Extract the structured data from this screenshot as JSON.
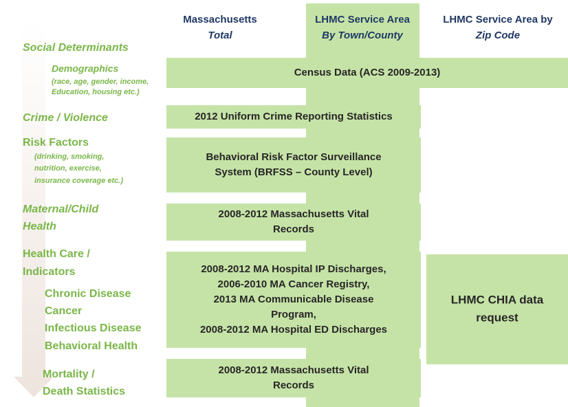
{
  "columns": [
    {
      "title": "Massachusetts",
      "subtitle": "Total"
    },
    {
      "title": "LHMC Service Area",
      "subtitle": "By Town/County"
    },
    {
      "title": "LHMC Service Area by",
      "subtitle": "Zip Code"
    }
  ],
  "rows": [
    {
      "label": [
        "Social Determinants"
      ]
    },
    {
      "label": [
        "Demographics"
      ],
      "note": [
        "(race, age, gender, income,",
        "Education, housing etc.)"
      ]
    },
    {
      "label": [
        "Crime / Violence"
      ]
    },
    {
      "label": [
        "Risk Factors"
      ],
      "note": [
        "(drinking, smoking,",
        "nutrition, exercise,",
        "insurance coverage etc.)"
      ]
    },
    {
      "label": [
        "Maternal/Child",
        "Health"
      ]
    },
    {
      "label": [
        "Health Care /",
        "Indicators"
      ],
      "items": [
        "Chronic Disease",
        "Cancer",
        "Infectious Disease",
        "Behavioral Health"
      ]
    },
    {
      "label": [
        "Mortality /",
        "Death Statistics"
      ]
    }
  ],
  "sources": [
    {
      "lines": [
        "Census Data  (ACS 2009-2013)"
      ]
    },
    {
      "lines": [
        "2012 Uniform Crime Reporting Statistics"
      ]
    },
    {
      "lines": [
        "Behavioral Risk Factor Surveillance",
        "System (BRFSS – County Level)"
      ]
    },
    {
      "lines": [
        "2008-2012 Massachusetts Vital",
        "Records"
      ]
    },
    {
      "lines": [
        "2008-2012 MA Hospital IP Discharges,",
        "2006-2010 MA Cancer Registry,",
        "2013 MA Communicable Disease",
        "Program,",
        "2008-2012 MA Hospital ED Discharges"
      ]
    },
    {
      "lines": [
        "LHMC CHIA data",
        "request"
      ]
    },
    {
      "lines": [
        "2008-2012 Massachusetts Vital",
        "Records"
      ]
    }
  ]
}
